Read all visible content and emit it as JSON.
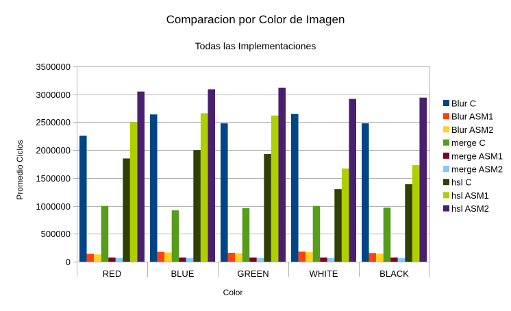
{
  "chart_data": {
    "type": "bar",
    "title": "Comparacion por Color de Imagen",
    "subtitle": "Todas las Implementaciones",
    "xlabel": "Color",
    "ylabel": "Promedio Ciclos",
    "ylim": [
      0,
      3500000
    ],
    "yticks": [
      0,
      500000,
      1000000,
      1500000,
      2000000,
      2500000,
      3000000,
      3500000
    ],
    "ytick_labels": [
      "0",
      "500000",
      "1000000",
      "1500000",
      "2000000",
      "2500000",
      "3000000",
      "3500000"
    ],
    "grid": true,
    "legend_position": "right",
    "categories": [
      "RED",
      "BLUE",
      "GREEN",
      "WHITE",
      "BLACK"
    ],
    "series": [
      {
        "name": "Blur C",
        "color": "#004586",
        "values": [
          2260000,
          2640000,
          2480000,
          2650000,
          2480000
        ]
      },
      {
        "name": "Blur ASM1",
        "color": "#ff420e",
        "values": [
          140000,
          175000,
          160000,
          180000,
          155000
        ]
      },
      {
        "name": "Blur ASM2",
        "color": "#ffd320",
        "values": [
          130000,
          165000,
          150000,
          170000,
          145000
        ]
      },
      {
        "name": "merge C",
        "color": "#579d1c",
        "values": [
          1000000,
          920000,
          960000,
          1000000,
          970000
        ]
      },
      {
        "name": "merge ASM1",
        "color": "#7e0021",
        "values": [
          75000,
          75000,
          75000,
          75000,
          75000
        ]
      },
      {
        "name": "merge ASM2",
        "color": "#83caff",
        "values": [
          65000,
          65000,
          65000,
          65000,
          65000
        ]
      },
      {
        "name": "hsl C",
        "color": "#314004",
        "values": [
          1850000,
          2000000,
          1930000,
          1300000,
          1390000
        ]
      },
      {
        "name": "hsl ASM1",
        "color": "#aecf00",
        "values": [
          2500000,
          2660000,
          2620000,
          1670000,
          1730000
        ]
      },
      {
        "name": "hsl ASM2",
        "color": "#4b1f6f",
        "values": [
          3050000,
          3090000,
          3120000,
          2920000,
          2940000
        ]
      }
    ]
  }
}
